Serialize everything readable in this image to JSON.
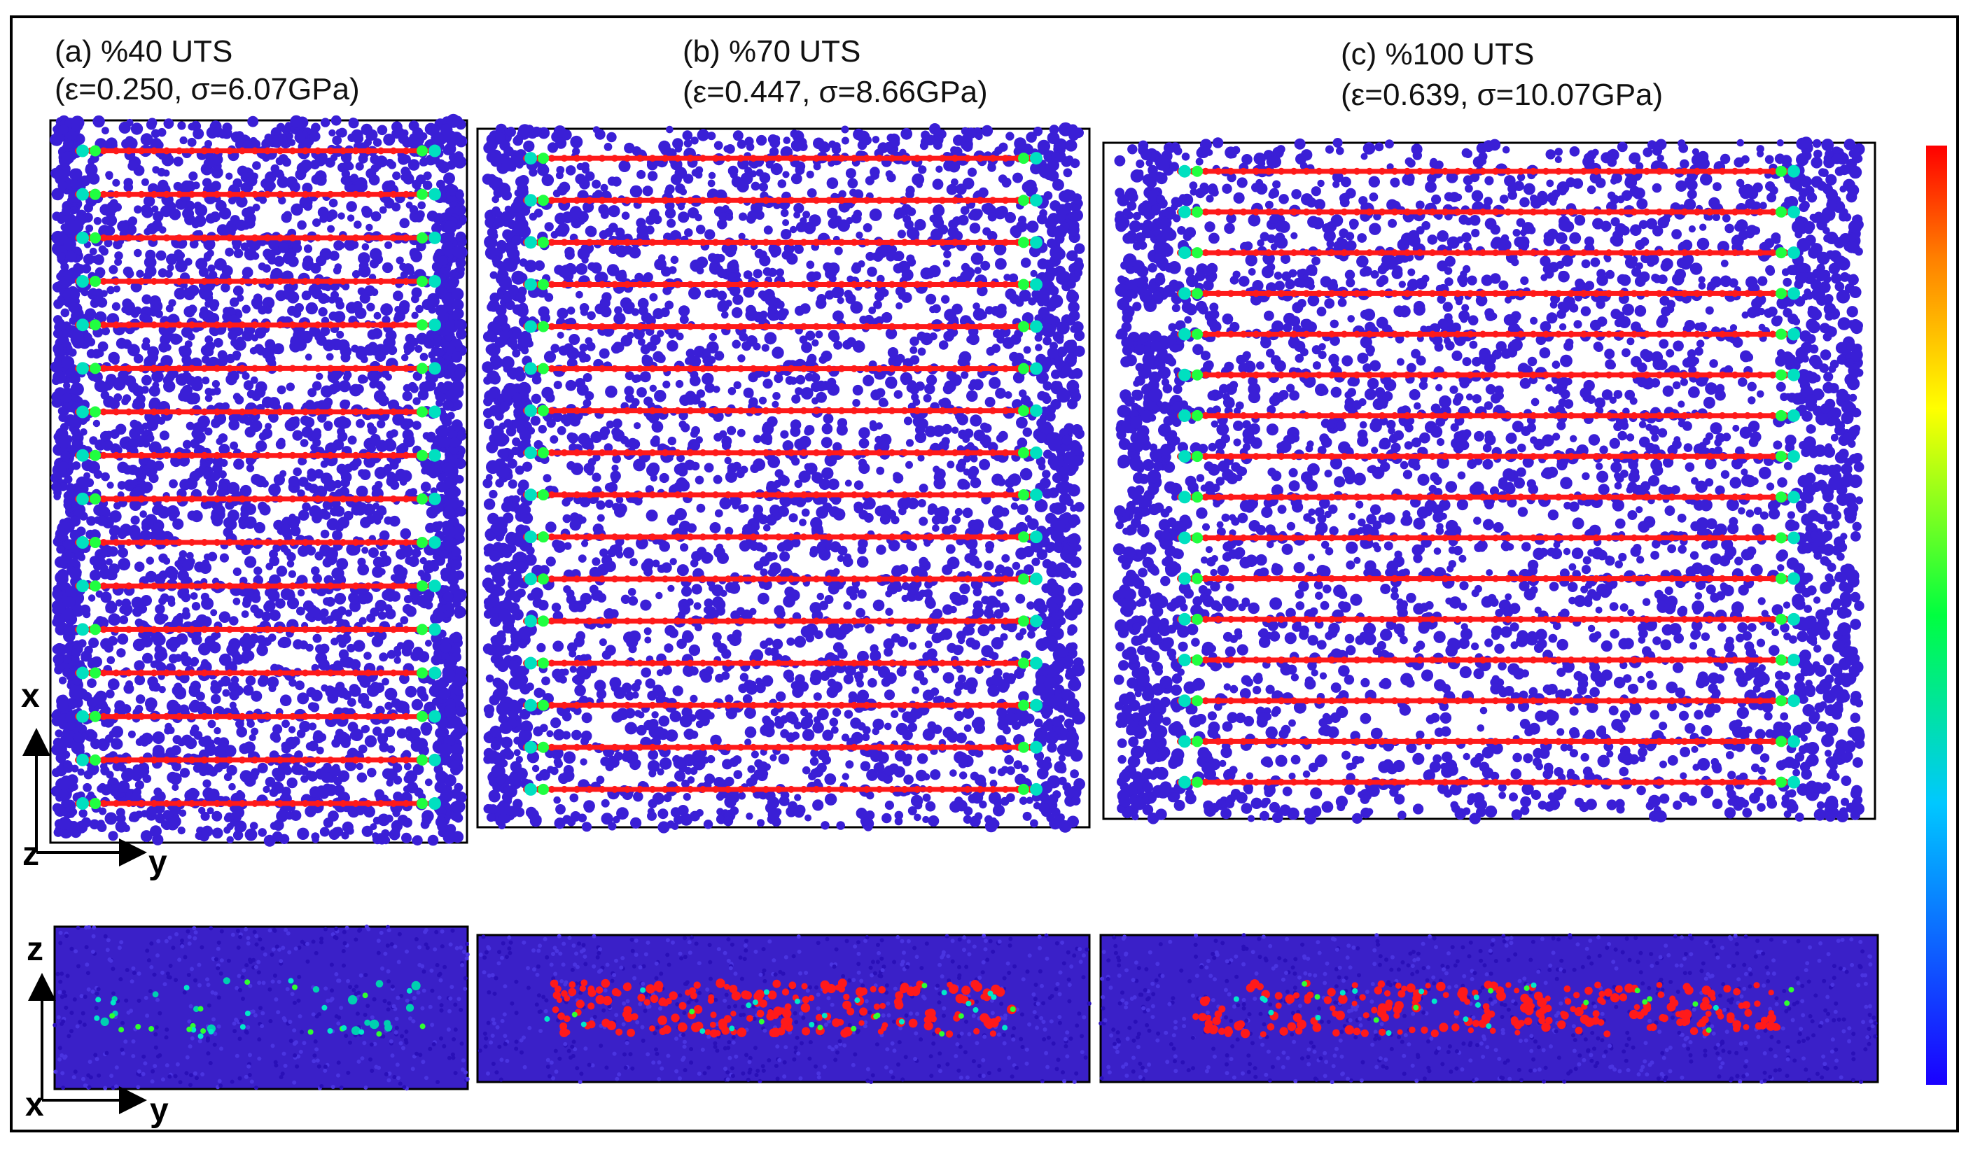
{
  "panels": [
    {
      "id": "a",
      "title": "(a)   %40 UTS",
      "subtitle": "(ε=0.250, σ=6.07GPa)",
      "strain": 0.25,
      "stress_gpa": 6.07,
      "uts_percent": 40
    },
    {
      "id": "b",
      "title": "(b) %70 UTS",
      "subtitle": "(ε=0.447, σ=8.66GPa)",
      "strain": 0.447,
      "stress_gpa": 8.66,
      "uts_percent": 70
    },
    {
      "id": "c",
      "title": "(c) %100 UTS",
      "subtitle": "(ε=0.639, σ=10.07GPa)",
      "strain": 0.639,
      "stress_gpa": 10.07,
      "uts_percent": 100
    }
  ],
  "axes": {
    "top_view": {
      "vertical": "x",
      "horizontal": "y",
      "origin": "z"
    },
    "side_view": {
      "vertical": "z",
      "horizontal": "y",
      "origin": "x"
    }
  },
  "colors": {
    "atom_base": "#3a1fd6",
    "chain_high": "#ff1a1a",
    "colorbar": [
      "#0000ff",
      "#00ffff",
      "#00ff00",
      "#ffff00",
      "#ff0000"
    ]
  }
}
